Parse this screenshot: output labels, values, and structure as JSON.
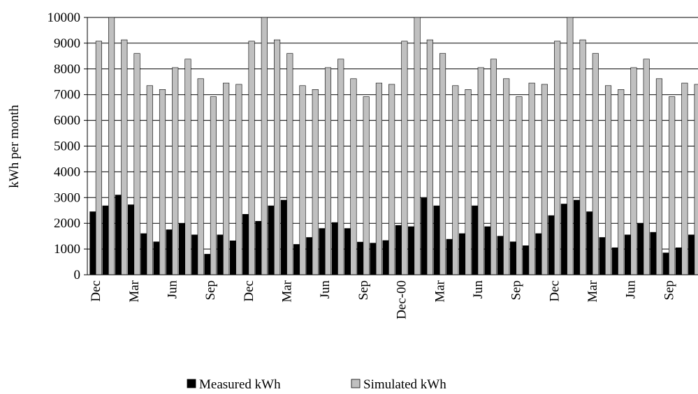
{
  "chart_data": {
    "type": "bar",
    "y_label": "kWh per month",
    "categories": [
      "Dec",
      null,
      null,
      "Mar",
      null,
      null,
      "Jun",
      null,
      null,
      "Sep",
      null,
      null,
      "Dec",
      null,
      null,
      "Mar",
      null,
      null,
      "Jun",
      null,
      null,
      "Sep",
      null,
      null,
      "Dec-00",
      null,
      null,
      "Mar",
      null,
      null,
      "Jun",
      null,
      null,
      "Sep",
      null,
      null,
      "Dec",
      null,
      null,
      "Mar",
      null,
      null,
      "Jun",
      null,
      null,
      "Sep",
      null,
      null
    ],
    "series": [
      {
        "name": "Measured kWh",
        "color": "#000000",
        "values": [
          2450,
          2680,
          3100,
          2720,
          1600,
          1280,
          1750,
          1990,
          1550,
          800,
          1550,
          1320,
          2350,
          2080,
          2680,
          2900,
          1180,
          1450,
          1800,
          2030,
          1800,
          1270,
          1230,
          1330,
          1920,
          1870,
          2980,
          2680,
          1380,
          1600,
          2680,
          1870,
          1500,
          1280,
          1130,
          1600,
          2300,
          2750,
          2900,
          2450,
          1450,
          1050,
          1550,
          2000,
          1650,
          850,
          1050,
          1550
        ]
      },
      {
        "name": "Simulated kWh",
        "color": "#c0c0c0",
        "values": [
          9080,
          10000,
          9130,
          8600,
          7350,
          7200,
          8050,
          8380,
          7620,
          6920,
          7450,
          7400,
          9080,
          10000,
          9130,
          8600,
          7350,
          7200,
          8050,
          8380,
          7620,
          6920,
          7450,
          7400,
          9080,
          10000,
          9130,
          8600,
          7350,
          7200,
          8050,
          8380,
          7620,
          6920,
          7450,
          7400,
          9080,
          10000,
          9130,
          8600,
          7350,
          7200,
          8050,
          8380,
          7620,
          6920,
          7450,
          7400
        ]
      }
    ],
    "ylim": [
      0,
      10000
    ],
    "yticks": [
      0,
      1000,
      2000,
      3000,
      4000,
      5000,
      6000,
      7000,
      8000,
      9000,
      10000
    ],
    "grid": true,
    "legend": "bottom"
  }
}
